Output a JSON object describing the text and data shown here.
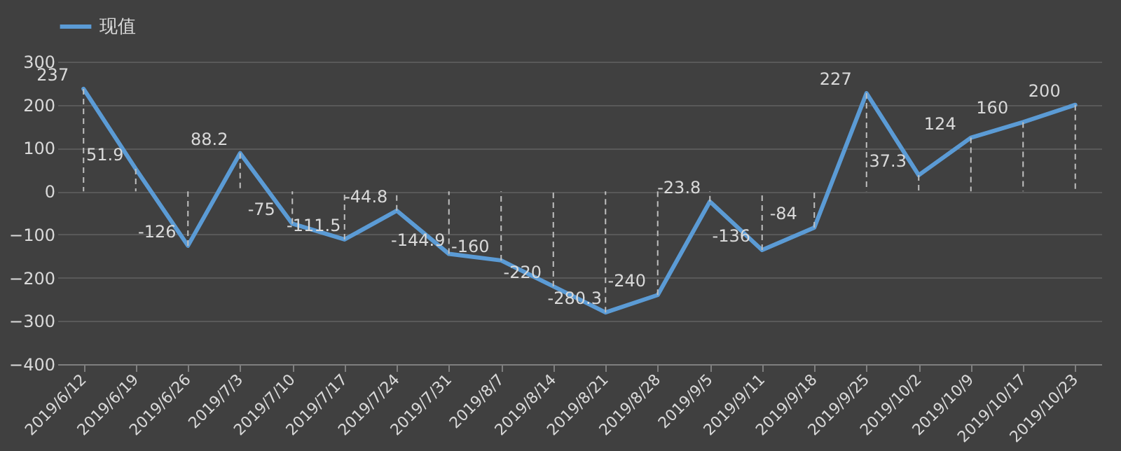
{
  "chart_data": {
    "type": "line",
    "categories": [
      "2019/6/12",
      "2019/6/19",
      "2019/6/26",
      "2019/7/3",
      "2019/7/10",
      "2019/7/17",
      "2019/7/24",
      "2019/7/31",
      "2019/8/7",
      "2019/8/14",
      "2019/8/21",
      "2019/8/28",
      "2019/9/5",
      "2019/9/11",
      "2019/9/18",
      "2019/9/25",
      "2019/10/2",
      "2019/10/9",
      "2019/10/17",
      "2019/10/23"
    ],
    "series": [
      {
        "name": "现值",
        "color": "#5b9bd5",
        "values": [
          237,
          51.9,
          -126,
          88.2,
          -75,
          -111.5,
          -44.8,
          -144.9,
          -160,
          -220,
          -280.3,
          -240,
          -23.8,
          -136,
          -84,
          227,
          37.3,
          124,
          160,
          200
        ]
      }
    ],
    "ylim": [
      -400,
      300
    ],
    "yticks": [
      -400,
      -300,
      -200,
      -100,
      0,
      100,
      200,
      300
    ],
    "grid": "y",
    "legend": "top",
    "data_labels": true,
    "marker": "none",
    "line_style": "solid"
  }
}
